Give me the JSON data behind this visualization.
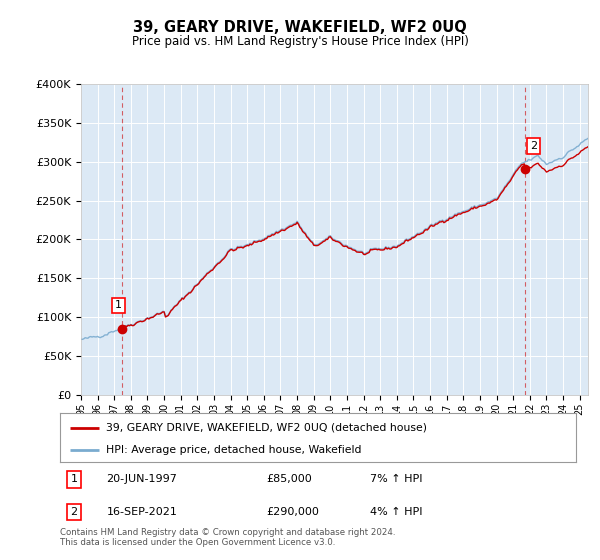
{
  "title": "39, GEARY DRIVE, WAKEFIELD, WF2 0UQ",
  "subtitle": "Price paid vs. HM Land Registry's House Price Index (HPI)",
  "sale1_date": 1997.47,
  "sale1_price": 85000,
  "sale1_label": "1",
  "sale2_date": 2021.71,
  "sale2_price": 290000,
  "sale2_label": "2",
  "property_line_color": "#cc0000",
  "hpi_line_color": "#7aabcf",
  "plot_bg_color": "#dce9f5",
  "legend_label_property": "39, GEARY DRIVE, WAKEFIELD, WF2 0UQ (detached house)",
  "legend_label_hpi": "HPI: Average price, detached house, Wakefield",
  "footer": "Contains HM Land Registry data © Crown copyright and database right 2024.\nThis data is licensed under the Open Government Licence v3.0.",
  "ylim": [
    0,
    400000
  ],
  "yticks": [
    0,
    50000,
    100000,
    150000,
    200000,
    250000,
    300000,
    350000,
    400000
  ],
  "xmin": 1995.0,
  "xmax": 2025.5
}
